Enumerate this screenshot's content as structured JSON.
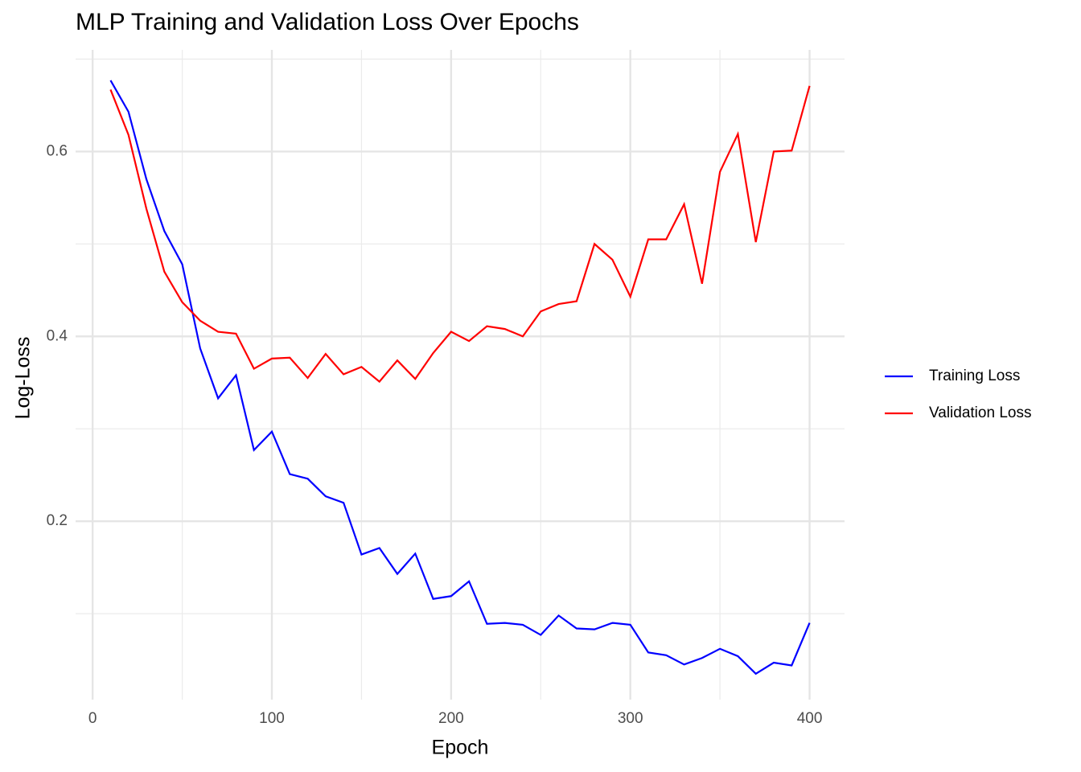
{
  "chart_data": {
    "type": "line",
    "title": "MLP Training and Validation Loss Over Epochs",
    "x_label": "Epoch",
    "y_label": "Log-Loss",
    "x": [
      10,
      20,
      30,
      40,
      50,
      60,
      70,
      80,
      90,
      100,
      110,
      120,
      130,
      140,
      150,
      160,
      170,
      180,
      190,
      200,
      210,
      220,
      230,
      240,
      250,
      260,
      270,
      280,
      290,
      300,
      310,
      320,
      330,
      340,
      350,
      360,
      370,
      380,
      390,
      400
    ],
    "series": [
      {
        "name": "Training Loss",
        "color": "#0000ff",
        "values": [
          0.677,
          0.643,
          0.57,
          0.514,
          0.478,
          0.387,
          0.333,
          0.358,
          0.277,
          0.297,
          0.251,
          0.246,
          0.227,
          0.22,
          0.164,
          0.171,
          0.143,
          0.165,
          0.116,
          0.119,
          0.135,
          0.089,
          0.09,
          0.088,
          0.077,
          0.098,
          0.084,
          0.083,
          0.09,
          0.088,
          0.058,
          0.055,
          0.045,
          0.052,
          0.062,
          0.054,
          0.035,
          0.047,
          0.044,
          0.09
        ]
      },
      {
        "name": "Validation Loss",
        "color": "#ff0000",
        "values": [
          0.667,
          0.618,
          0.538,
          0.47,
          0.437,
          0.417,
          0.405,
          0.403,
          0.365,
          0.376,
          0.377,
          0.355,
          0.381,
          0.359,
          0.367,
          0.351,
          0.374,
          0.354,
          0.382,
          0.405,
          0.395,
          0.411,
          0.408,
          0.4,
          0.427,
          0.435,
          0.438,
          0.5,
          0.483,
          0.443,
          0.505,
          0.505,
          0.543,
          0.457,
          0.578,
          0.619,
          0.502,
          0.6,
          0.601,
          0.671
        ]
      }
    ],
    "xlim": [
      -9.5,
      419.5
    ],
    "ylim": [
      0.007,
      0.71
    ],
    "xticks": [
      0,
      100,
      200,
      300,
      400
    ],
    "yticks": [
      0.2,
      0.4,
      0.6
    ],
    "xminor": [
      50,
      150,
      250,
      350
    ],
    "yminor": [
      0.1,
      0.3,
      0.5,
      0.7
    ],
    "grid": true,
    "legend": "right"
  }
}
